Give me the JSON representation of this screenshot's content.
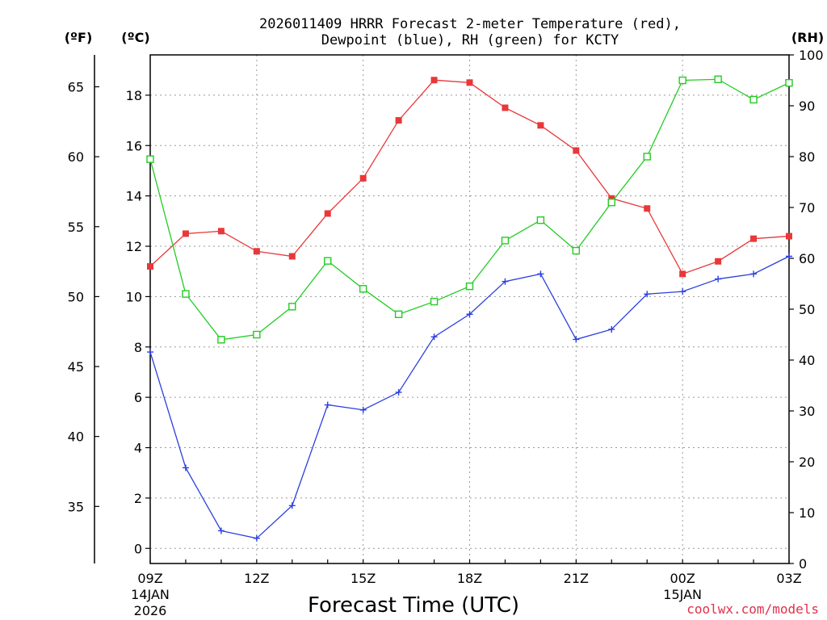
{
  "chart_data": {
    "type": "line",
    "title_line1": "2026011409 HRRR Forecast 2-meter Temperature (red),",
    "title_line2": "Dewpoint (blue), RH (green) for KCTY",
    "xlabel": "Forecast Time (UTC)",
    "unit_f": "(ºF)",
    "unit_c": "(ºC)",
    "unit_rh": "(RH)",
    "credit": "coolwx.com/models",
    "credit_color": "#e0304a",
    "x_hours": [
      0,
      1,
      2,
      3,
      4,
      5,
      6,
      7,
      8,
      9,
      10,
      11,
      12,
      13,
      14,
      15,
      16,
      17,
      18
    ],
    "x_tick_labels": [
      {
        "hour": 0,
        "label": "09Z",
        "sub1": "14JAN",
        "sub2": "2026"
      },
      {
        "hour": 3,
        "label": "12Z"
      },
      {
        "hour": 6,
        "label": "15Z"
      },
      {
        "hour": 9,
        "label": "18Z"
      },
      {
        "hour": 12,
        "label": "21Z"
      },
      {
        "hour": 15,
        "label": "00Z",
        "sub1": "15JAN"
      },
      {
        "hour": 18,
        "label": "03Z"
      }
    ],
    "y_celsius_range": [
      -0.6,
      19.6
    ],
    "y_celsius_ticks": [
      "0",
      "2",
      "4",
      "6",
      "8",
      "10",
      "12",
      "14",
      "16",
      "18"
    ],
    "y_fahrenheit_ticks": [
      "35",
      "40",
      "45",
      "50",
      "55",
      "60",
      "65"
    ],
    "y_rh_range": [
      0,
      100
    ],
    "y_rh_ticks": [
      "0",
      "10",
      "20",
      "30",
      "40",
      "50",
      "60",
      "70",
      "80",
      "90",
      "100"
    ],
    "grid": true,
    "series": [
      {
        "color": "#e8383a",
        "marker": "filled-square",
        "axis": "celsius",
        "values": [
          11.2,
          12.5,
          12.6,
          11.8,
          11.6,
          13.3,
          14.7,
          17.0,
          18.6,
          18.5,
          17.5,
          16.8,
          15.8,
          13.9,
          13.5,
          10.9,
          11.4,
          12.3,
          12.4
        ]
      },
      {
        "color": "#2b3fe0",
        "marker": "plus",
        "axis": "celsius",
        "values": [
          7.8,
          3.2,
          0.7,
          0.4,
          1.7,
          5.7,
          5.5,
          6.2,
          8.4,
          9.3,
          10.6,
          10.9,
          8.3,
          8.7,
          10.1,
          10.2,
          10.7,
          10.9,
          11.6
        ]
      },
      {
        "color": "#22cc22",
        "marker": "open-square",
        "axis": "rh",
        "values": [
          79.5,
          53,
          44,
          45,
          50.5,
          59.5,
          54,
          49,
          51.5,
          54.5,
          63.5,
          67.5,
          61.5,
          71,
          80,
          95,
          95.2,
          91.2,
          94.5
        ]
      }
    ]
  }
}
